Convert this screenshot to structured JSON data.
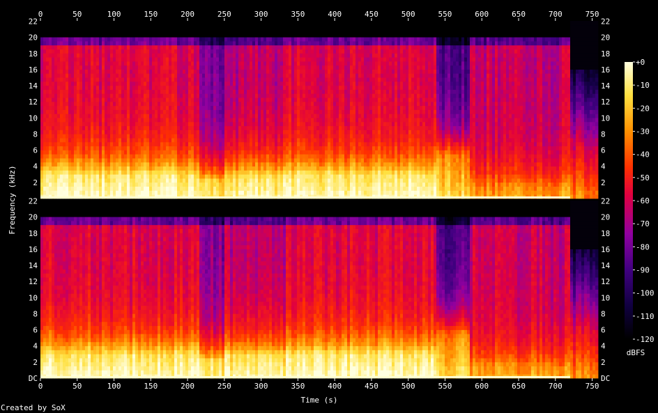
{
  "chart_data": {
    "type": "heatmap",
    "title": "",
    "xlabel": "Time (s)",
    "ylabel": "Frequency (kHz)",
    "x_ticks": [
      0,
      50,
      100,
      150,
      200,
      250,
      300,
      350,
      400,
      450,
      500,
      550,
      600,
      650,
      700,
      750
    ],
    "xlim": [
      0,
      758
    ],
    "y_ticks_upper": [
      "2",
      "4",
      "6",
      "8",
      "10",
      "12",
      "14",
      "16",
      "18",
      "20",
      "22"
    ],
    "y_ticks_lower": [
      "DC",
      "2",
      "4",
      "6",
      "8",
      "10",
      "12",
      "14",
      "16",
      "18",
      "20",
      "22"
    ],
    "ylim_khz": [
      0,
      22.05
    ],
    "channels": 2,
    "colorbar": {
      "label": "dBFS",
      "ticks": [
        "+0",
        "-10",
        "-20",
        "-30",
        "-40",
        "-50",
        "-60",
        "-70",
        "-80",
        "-90",
        "-100",
        "-110",
        "-120"
      ],
      "range": [
        -120,
        0
      ]
    },
    "cutoff_khz": 20,
    "segments": [
      {
        "start": 0,
        "end": 215,
        "level": "loud"
      },
      {
        "start": 215,
        "end": 250,
        "level": "dip"
      },
      {
        "start": 250,
        "end": 335,
        "level": "mixed"
      },
      {
        "start": 335,
        "end": 540,
        "level": "loud"
      },
      {
        "start": 540,
        "end": 585,
        "level": "quiet"
      },
      {
        "start": 585,
        "end": 720,
        "level": "medium"
      },
      {
        "start": 720,
        "end": 758,
        "level": "fade"
      }
    ],
    "palette": [
      "#000000",
      "#100040",
      "#400080",
      "#9000a0",
      "#e00040",
      "#ff3000",
      "#ff9000",
      "#ffe040",
      "#ffffe0"
    ]
  },
  "credit": "Created by SoX"
}
